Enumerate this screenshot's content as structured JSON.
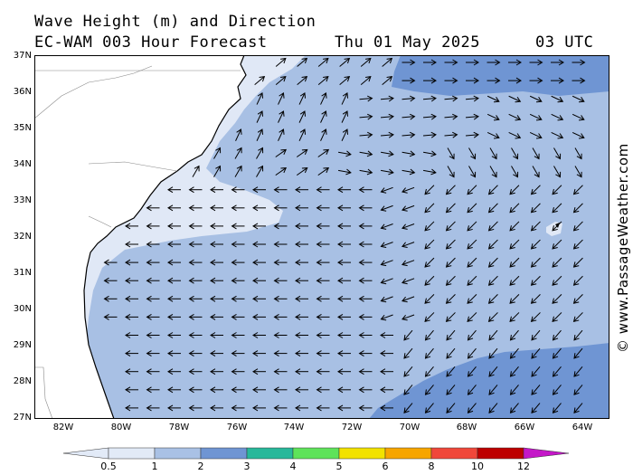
{
  "header": {
    "title": "Wave Height (m) and Direction",
    "model": "EC-WAM 003 Hour Forecast",
    "date": "Thu 01 May 2025",
    "time": "03 UTC"
  },
  "watermark": "© www.PassageWeather.com",
  "map": {
    "lat_labels": [
      "37N",
      "36N",
      "35N",
      "34N",
      "33N",
      "32N",
      "31N",
      "30N",
      "29N",
      "28N",
      "27N"
    ],
    "lon_labels": [
      "82W",
      "80W",
      "78W",
      "76W",
      "74W",
      "72W",
      "70W",
      "68W",
      "66W",
      "64W"
    ],
    "land_color": "#ffffff",
    "wave_colors": {
      "band_0_5_1": "#e0e8f6",
      "band_1_2": "#a8c0e4",
      "band_2_3": "#6f95d3"
    },
    "arrow_color": "#000000"
  },
  "colorbar": {
    "labels": [
      "0.5",
      "1",
      "2",
      "3",
      "4",
      "5",
      "6",
      "8",
      "10",
      "12"
    ],
    "colors": [
      "#e2eaf7",
      "#a9c1e5",
      "#6f95d3",
      "#28b89a",
      "#5ee35a",
      "#f2e200",
      "#f7a500",
      "#f0473a",
      "#bd0000",
      "#c417c8"
    ]
  }
}
